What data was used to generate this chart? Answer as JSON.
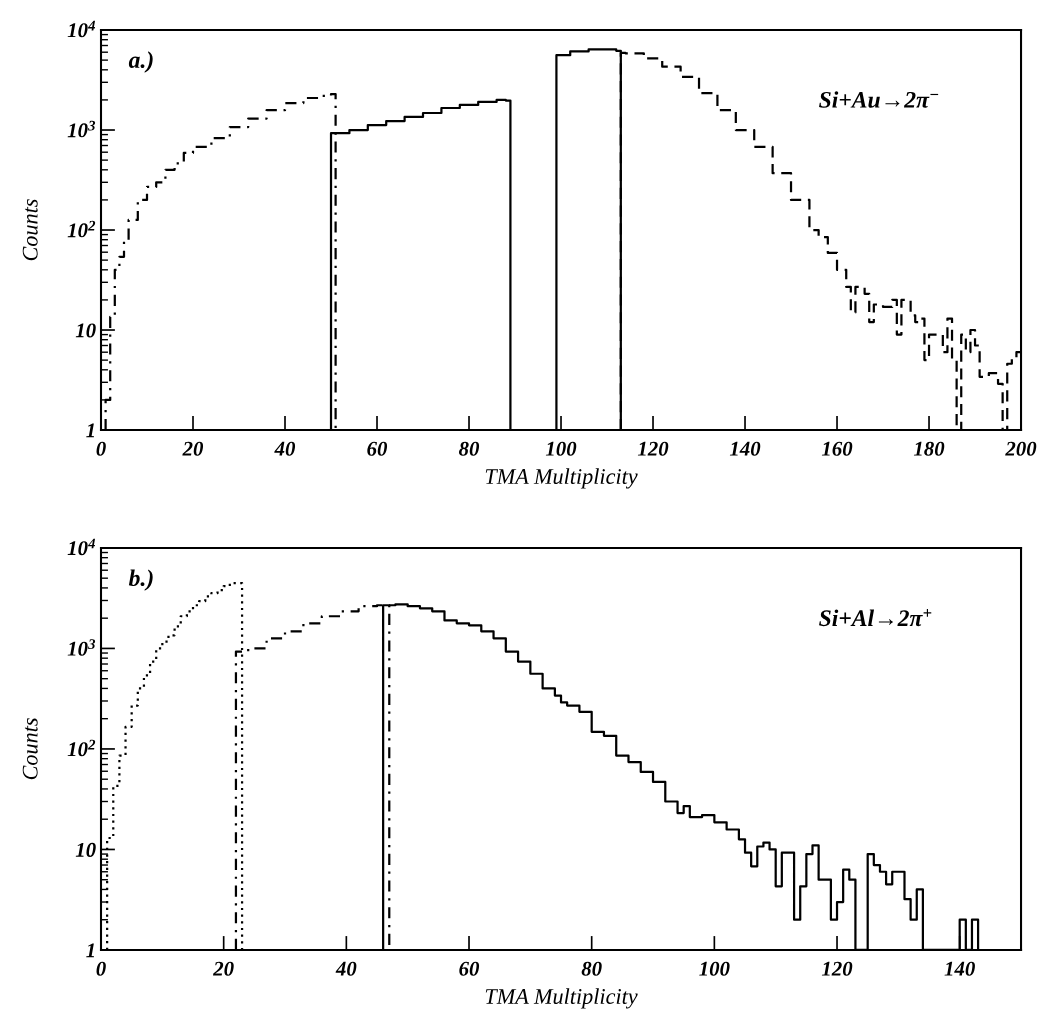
{
  "chart_data": [
    {
      "type": "step",
      "xlabel": "TMA Multiplicity",
      "ylabel": "Counts",
      "log": "y",
      "grid": false,
      "xlim": [
        0,
        200
      ],
      "xticks": [
        0,
        20,
        40,
        60,
        80,
        100,
        120,
        140,
        160,
        180,
        200
      ],
      "ylim": [
        1,
        10000
      ],
      "yticks": [
        1,
        10,
        {
          "value": 100,
          "label": "10$^{2}$"
        },
        {
          "value": 1000,
          "label": "10$^{3}$"
        },
        {
          "value": 10000,
          "label": "10$^{4}$"
        }
      ],
      "annotations": [
        "a.)",
        "Si+Au→2π$^{−}$"
      ],
      "series": [
        {
          "color": "#000000",
          "line_style": "dashdot",
          "x": [
            1,
            1,
            2,
            3,
            4,
            5,
            6,
            8,
            10,
            12,
            14,
            16,
            18,
            20,
            24,
            28,
            32,
            36,
            40,
            44,
            48,
            50,
            51
          ],
          "values": [
            1,
            2,
            13.5,
            40,
            54,
            79,
            126,
            200,
            270,
            300,
            400,
            465,
            590,
            680,
            830,
            1070,
            1300,
            1580,
            1860,
            2090,
            2190,
            2290,
            1
          ]
        },
        {
          "color": "#000000",
          "line_style": "solid",
          "x": [
            50,
            50,
            54,
            58,
            62,
            66,
            70,
            74,
            78,
            82,
            86,
            88,
            89
          ],
          "values": [
            1,
            930,
            1000,
            1120,
            1230,
            1350,
            1480,
            1660,
            1780,
            1910,
            2000,
            1970,
            1
          ]
        },
        {
          "color": "#000000",
          "line_style": "solid",
          "x": [
            99,
            99,
            102,
            106,
            110,
            112,
            113
          ],
          "values": [
            1,
            5600,
            6100,
            6400,
            6400,
            6200,
            1
          ]
        },
        {
          "color": "#000000",
          "line_style": "dashed",
          "x": [
            113,
            113,
            114,
            118,
            122,
            126,
            130,
            134,
            138,
            142,
            146,
            150,
            154,
            156,
            158,
            160,
            162,
            163,
            164,
            166,
            167,
            168,
            170,
            172,
            173,
            174,
            176,
            177,
            178,
            179,
            180,
            182,
            183,
            184,
            185,
            186,
            187,
            188,
            189,
            190,
            191,
            193,
            195,
            196,
            197,
            198,
            199,
            200
          ],
          "values": [
            1,
            5900,
            5850,
            5200,
            4300,
            3400,
            2340,
            1580,
            1000,
            680,
            370,
            200,
            100,
            85,
            59,
            40,
            27,
            15,
            27,
            23,
            12,
            18,
            17,
            20,
            9,
            20,
            14,
            12,
            13,
            5,
            9,
            9,
            6,
            13,
            5,
            1,
            9,
            6,
            10,
            7,
            3.4,
            3.7,
            2.9,
            1,
            4.6,
            5.3,
            6,
            6
          ]
        }
      ]
    },
    {
      "type": "step",
      "xlabel": "TMA Multiplicity",
      "ylabel": "Counts",
      "log": "y",
      "grid": false,
      "xlim": [
        0,
        150
      ],
      "xticks": [
        0,
        20,
        40,
        60,
        80,
        100,
        120,
        140
      ],
      "ylim": [
        1,
        10000
      ],
      "yticks": [
        1,
        10,
        {
          "value": 100,
          "label": "10$^{2}$"
        },
        {
          "value": 1000,
          "label": "10$^{3}$"
        },
        {
          "value": 10000,
          "label": "10$^{4}$"
        }
      ],
      "annotations": [
        "b.)",
        "Si+Al→2π$^{+}$"
      ],
      "series": [
        {
          "color": "#000000",
          "line_style": "dotted",
          "x": [
            1,
            1,
            2,
            3,
            4,
            5,
            6,
            7,
            8,
            9,
            10,
            11,
            12,
            13,
            14,
            15,
            16,
            17,
            18,
            19,
            20,
            21,
            22,
            23
          ],
          "values": [
            1,
            13,
            43,
            86,
            166,
            270,
            400,
            540,
            740,
            1000,
            1170,
            1350,
            1660,
            2090,
            2340,
            2690,
            2950,
            3300,
            3550,
            3800,
            4170,
            4470,
            4470,
            1
          ]
        },
        {
          "color": "#000000",
          "line_style": "dashdot",
          "x": [
            22,
            22,
            24,
            27,
            30,
            33,
            36,
            39,
            42,
            45,
            47
          ],
          "values": [
            1,
            930,
            1000,
            1260,
            1480,
            1780,
            2090,
            2340,
            2630,
            2690,
            1
          ]
        },
        {
          "color": "#000000",
          "line_style": "solid",
          "x": [
            46,
            46,
            48,
            50,
            52,
            54,
            56,
            58,
            60,
            62,
            64,
            66,
            68,
            70,
            72,
            74,
            75,
            76,
            78,
            80,
            82,
            84,
            86,
            88,
            90,
            92,
            94,
            95,
            96,
            98,
            100,
            102,
            104,
            105,
            106,
            107,
            108,
            109,
            110,
            111,
            112,
            113,
            114,
            115,
            116,
            117,
            118,
            119,
            120,
            121,
            122,
            123,
            124,
            125,
            126,
            127,
            128,
            129,
            130,
            131,
            132,
            133,
            134,
            140,
            141,
            142,
            143
          ],
          "values": [
            1,
            2690,
            2750,
            2630,
            2510,
            2340,
            1900,
            1780,
            1700,
            1480,
            1260,
            930,
            740,
            560,
            400,
            340,
            290,
            270,
            234,
            148,
            135,
            86,
            74,
            59,
            47,
            30,
            23,
            27,
            21,
            22,
            18.6,
            15.8,
            12.6,
            9.3,
            6.8,
            10.7,
            11.7,
            10,
            4.3,
            9.3,
            9.3,
            2,
            4.3,
            9,
            11,
            5,
            5,
            2,
            3,
            6.3,
            5,
            1,
            1,
            9,
            7,
            6,
            4.5,
            6,
            6,
            3.2,
            2,
            4,
            1,
            2,
            1,
            2,
            1
          ]
        }
      ]
    }
  ]
}
